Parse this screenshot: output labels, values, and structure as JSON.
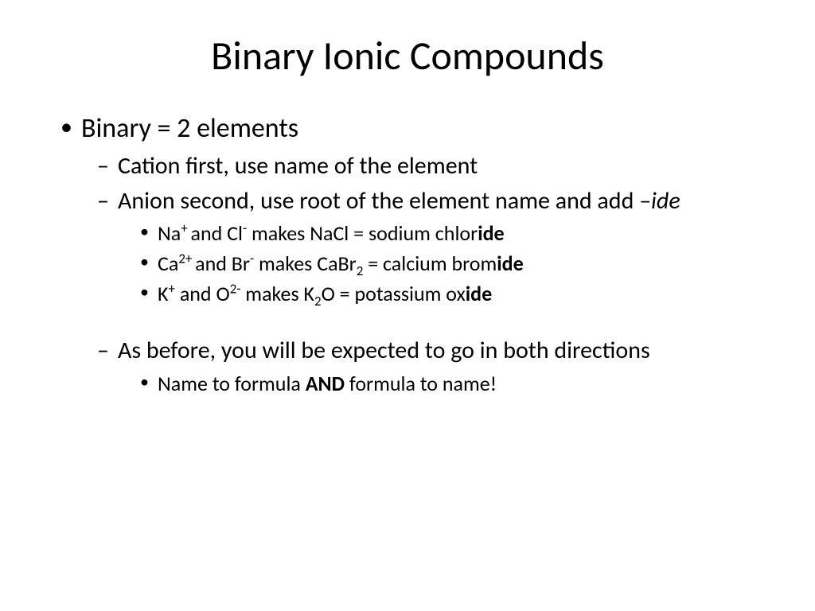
{
  "slide": {
    "title": "Binary Ionic Compounds",
    "title_fontsize": 50,
    "background_color": "#ffffff",
    "text_color": "#000000",
    "font_family": "Calibri"
  },
  "bullets": {
    "l1_item1": "Binary = 2 elements",
    "l2_item1": "Cation first,  use name of the element",
    "l2_item2_pre": "Anion second, use root of the element name and add ",
    "l2_item2_suffix": "–ide",
    "ex1_cation": "Na",
    "ex1_cation_charge": "+ ",
    "ex1_conj": "and  Cl",
    "ex1_anion_charge": "-",
    "ex1_makes": "  makes NaCl = sodium chlor",
    "ex1_ide": "ide",
    "ex2_cation": "Ca",
    "ex2_cation_charge": "2+ ",
    "ex2_conj": "and Br",
    "ex2_anion_charge": "-",
    "ex2_makes_pre": " makes CaBr",
    "ex2_sub": "2",
    "ex2_makes_post": " = calcium brom",
    "ex2_ide": "ide",
    "ex3_cation": "K",
    "ex3_cation_charge": "+",
    "ex3_conj": " and O",
    "ex3_anion_charge": "2-",
    "ex3_makes_pre": " makes K",
    "ex3_sub": "2",
    "ex3_makes_post": "O = potassium ox",
    "ex3_ide": "ide",
    "l2_item3": "As before, you will be expected to go in both directions",
    "l3_final_pre": "Name to formula ",
    "l3_final_bold": "AND",
    "l3_final_post": " formula to name!"
  },
  "styling": {
    "l1_fontsize": 34,
    "l2_fontsize": 30,
    "l3_fontsize": 26,
    "l1_bullet": "•",
    "l2_bullet": "–",
    "l3_bullet": "•"
  }
}
